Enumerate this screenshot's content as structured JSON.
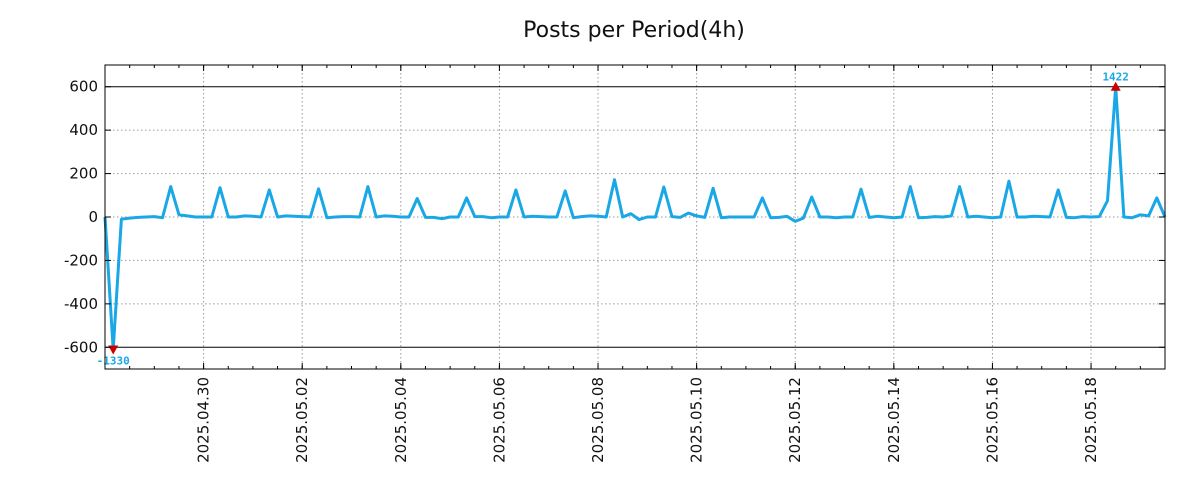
{
  "chart_data": {
    "type": "line",
    "title": "Posts per Period(4h)",
    "xlabel": "",
    "ylabel": "",
    "ylim": [
      -700,
      700
    ],
    "yticks": [
      600,
      400,
      200,
      0,
      -200,
      -400,
      -600
    ],
    "ytick_labels": [
      "600",
      "400",
      "200",
      "0",
      "-200",
      "-400",
      "-600"
    ],
    "xlim": [
      "2025-04-28T00:00",
      "2025-05-19T12:00"
    ],
    "xticks": [
      "2025-04-30",
      "2025-05-02",
      "2025-05-04",
      "2025-05-06",
      "2025-05-08",
      "2025-05-10",
      "2025-05-12",
      "2025-05-14",
      "2025-05-16",
      "2025-05-18"
    ],
    "xtick_labels": [
      "2025.04.30",
      "2025.05.02",
      "2025.05.04",
      "2025.05.06",
      "2025.05.08",
      "2025.05.10",
      "2025.05.12",
      "2025.05.14",
      "2025.05.16",
      "2025.05.18"
    ],
    "grid": true,
    "reference_lines": [
      600,
      -600
    ],
    "line_color": "#1aa7e6",
    "marker_color": "#cc0000",
    "annotation_color": "#1aa7e6",
    "series": [
      {
        "values": [
          {
            "x": "2025-04-28T00:00",
            "y": 0
          },
          {
            "x": "2025-04-28T04:00",
            "y": -610
          },
          {
            "x": "2025-04-28T08:00",
            "y": -10
          },
          {
            "x": "2025-04-28T12:00",
            "y": -5
          },
          {
            "x": "2025-04-28T16:00",
            "y": -2
          },
          {
            "x": "2025-04-28T20:00",
            "y": 0
          },
          {
            "x": "2025-04-29T00:00",
            "y": 2
          },
          {
            "x": "2025-04-29T04:00",
            "y": -3
          },
          {
            "x": "2025-04-29T08:00",
            "y": 140
          },
          {
            "x": "2025-04-29T12:00",
            "y": 10
          },
          {
            "x": "2025-04-29T16:00",
            "y": 5
          },
          {
            "x": "2025-04-29T20:00",
            "y": 0
          },
          {
            "x": "2025-04-30T00:00",
            "y": 0
          },
          {
            "x": "2025-04-30T04:00",
            "y": 0
          },
          {
            "x": "2025-04-30T08:00",
            "y": 135
          },
          {
            "x": "2025-04-30T12:00",
            "y": 0
          },
          {
            "x": "2025-04-30T16:00",
            "y": 0
          },
          {
            "x": "2025-04-30T20:00",
            "y": 5
          },
          {
            "x": "2025-05-01T00:00",
            "y": 3
          },
          {
            "x": "2025-05-01T04:00",
            "y": 0
          },
          {
            "x": "2025-05-01T08:00",
            "y": 125
          },
          {
            "x": "2025-05-01T12:00",
            "y": 0
          },
          {
            "x": "2025-05-01T16:00",
            "y": 5
          },
          {
            "x": "2025-05-01T20:00",
            "y": 3
          },
          {
            "x": "2025-05-02T00:00",
            "y": 2
          },
          {
            "x": "2025-05-02T04:00",
            "y": 0
          },
          {
            "x": "2025-05-02T08:00",
            "y": 130
          },
          {
            "x": "2025-05-02T12:00",
            "y": -3
          },
          {
            "x": "2025-05-02T16:00",
            "y": 0
          },
          {
            "x": "2025-05-02T20:00",
            "y": 2
          },
          {
            "x": "2025-05-03T00:00",
            "y": 2
          },
          {
            "x": "2025-05-03T04:00",
            "y": 0
          },
          {
            "x": "2025-05-03T08:00",
            "y": 140
          },
          {
            "x": "2025-05-03T12:00",
            "y": 0
          },
          {
            "x": "2025-05-03T16:00",
            "y": 5
          },
          {
            "x": "2025-05-03T20:00",
            "y": 3
          },
          {
            "x": "2025-05-04T00:00",
            "y": 0
          },
          {
            "x": "2025-05-04T04:00",
            "y": 0
          },
          {
            "x": "2025-05-04T08:00",
            "y": 85
          },
          {
            "x": "2025-05-04T12:00",
            "y": -2
          },
          {
            "x": "2025-05-04T16:00",
            "y": -2
          },
          {
            "x": "2025-05-04T20:00",
            "y": -8
          },
          {
            "x": "2025-05-05T00:00",
            "y": 0
          },
          {
            "x": "2025-05-05T04:00",
            "y": 0
          },
          {
            "x": "2025-05-05T08:00",
            "y": 88
          },
          {
            "x": "2025-05-05T12:00",
            "y": 2
          },
          {
            "x": "2025-05-05T16:00",
            "y": 2
          },
          {
            "x": "2025-05-05T20:00",
            "y": -3
          },
          {
            "x": "2025-05-06T00:00",
            "y": 0
          },
          {
            "x": "2025-05-06T04:00",
            "y": 0
          },
          {
            "x": "2025-05-06T08:00",
            "y": 125
          },
          {
            "x": "2025-05-06T12:00",
            "y": 0
          },
          {
            "x": "2025-05-06T16:00",
            "y": 3
          },
          {
            "x": "2025-05-06T20:00",
            "y": 2
          },
          {
            "x": "2025-05-07T00:00",
            "y": 0
          },
          {
            "x": "2025-05-07T04:00",
            "y": 0
          },
          {
            "x": "2025-05-07T08:00",
            "y": 120
          },
          {
            "x": "2025-05-07T12:00",
            "y": -3
          },
          {
            "x": "2025-05-07T16:00",
            "y": 2
          },
          {
            "x": "2025-05-07T20:00",
            "y": 5
          },
          {
            "x": "2025-05-08T00:00",
            "y": 3
          },
          {
            "x": "2025-05-08T04:00",
            "y": 0
          },
          {
            "x": "2025-05-08T08:00",
            "y": 172
          },
          {
            "x": "2025-05-08T12:00",
            "y": 0
          },
          {
            "x": "2025-05-08T16:00",
            "y": 15
          },
          {
            "x": "2025-05-08T20:00",
            "y": -12
          },
          {
            "x": "2025-05-09T00:00",
            "y": 0
          },
          {
            "x": "2025-05-09T04:00",
            "y": 0
          },
          {
            "x": "2025-05-09T08:00",
            "y": 138
          },
          {
            "x": "2025-05-09T12:00",
            "y": 2
          },
          {
            "x": "2025-05-09T16:00",
            "y": -2
          },
          {
            "x": "2025-05-09T20:00",
            "y": 18
          },
          {
            "x": "2025-05-10T00:00",
            "y": 5
          },
          {
            "x": "2025-05-10T04:00",
            "y": -2
          },
          {
            "x": "2025-05-10T08:00",
            "y": 132
          },
          {
            "x": "2025-05-10T12:00",
            "y": -3
          },
          {
            "x": "2025-05-10T16:00",
            "y": 0
          },
          {
            "x": "2025-05-10T20:00",
            "y": 0
          },
          {
            "x": "2025-05-11T00:00",
            "y": 0
          },
          {
            "x": "2025-05-11T04:00",
            "y": 0
          },
          {
            "x": "2025-05-11T08:00",
            "y": 88
          },
          {
            "x": "2025-05-11T12:00",
            "y": -3
          },
          {
            "x": "2025-05-11T16:00",
            "y": -2
          },
          {
            "x": "2025-05-11T20:00",
            "y": 3
          },
          {
            "x": "2025-05-12T00:00",
            "y": -20
          },
          {
            "x": "2025-05-12T04:00",
            "y": -5
          },
          {
            "x": "2025-05-12T08:00",
            "y": 92
          },
          {
            "x": "2025-05-12T12:00",
            "y": 0
          },
          {
            "x": "2025-05-12T16:00",
            "y": 0
          },
          {
            "x": "2025-05-12T20:00",
            "y": -3
          },
          {
            "x": "2025-05-13T00:00",
            "y": 0
          },
          {
            "x": "2025-05-13T04:00",
            "y": 0
          },
          {
            "x": "2025-05-13T08:00",
            "y": 128
          },
          {
            "x": "2025-05-13T12:00",
            "y": -2
          },
          {
            "x": "2025-05-13T16:00",
            "y": 3
          },
          {
            "x": "2025-05-13T20:00",
            "y": 0
          },
          {
            "x": "2025-05-14T00:00",
            "y": -3
          },
          {
            "x": "2025-05-14T04:00",
            "y": 0
          },
          {
            "x": "2025-05-14T08:00",
            "y": 140
          },
          {
            "x": "2025-05-14T12:00",
            "y": -3
          },
          {
            "x": "2025-05-14T16:00",
            "y": -2
          },
          {
            "x": "2025-05-14T20:00",
            "y": 2
          },
          {
            "x": "2025-05-15T00:00",
            "y": 0
          },
          {
            "x": "2025-05-15T04:00",
            "y": 5
          },
          {
            "x": "2025-05-15T08:00",
            "y": 140
          },
          {
            "x": "2025-05-15T12:00",
            "y": 0
          },
          {
            "x": "2025-05-15T16:00",
            "y": 3
          },
          {
            "x": "2025-05-15T20:00",
            "y": 0
          },
          {
            "x": "2025-05-16T00:00",
            "y": -3
          },
          {
            "x": "2025-05-16T04:00",
            "y": 0
          },
          {
            "x": "2025-05-16T08:00",
            "y": 165
          },
          {
            "x": "2025-05-16T12:00",
            "y": 0
          },
          {
            "x": "2025-05-16T16:00",
            "y": 0
          },
          {
            "x": "2025-05-16T20:00",
            "y": 3
          },
          {
            "x": "2025-05-17T00:00",
            "y": 2
          },
          {
            "x": "2025-05-17T04:00",
            "y": 0
          },
          {
            "x": "2025-05-17T08:00",
            "y": 125
          },
          {
            "x": "2025-05-17T12:00",
            "y": -2
          },
          {
            "x": "2025-05-17T16:00",
            "y": -3
          },
          {
            "x": "2025-05-17T20:00",
            "y": 2
          },
          {
            "x": "2025-05-18T00:00",
            "y": 0
          },
          {
            "x": "2025-05-18T04:00",
            "y": 2
          },
          {
            "x": "2025-05-18T08:00",
            "y": 75
          },
          {
            "x": "2025-05-18T12:00",
            "y": 600
          },
          {
            "x": "2025-05-18T16:00",
            "y": 0
          },
          {
            "x": "2025-05-18T20:00",
            "y": -3
          },
          {
            "x": "2025-05-19T00:00",
            "y": 10
          },
          {
            "x": "2025-05-19T04:00",
            "y": 5
          },
          {
            "x": "2025-05-19T08:00",
            "y": 88
          },
          {
            "x": "2025-05-19T12:00",
            "y": 0
          }
        ]
      }
    ],
    "annotations": [
      {
        "x": "2025-04-28T04:00",
        "y": -610,
        "label": "-1330",
        "marker": "down-triangle",
        "position": "below"
      },
      {
        "x": "2025-05-18T12:00",
        "y": 600,
        "label": "1422",
        "marker": "up-triangle",
        "position": "above"
      }
    ]
  }
}
